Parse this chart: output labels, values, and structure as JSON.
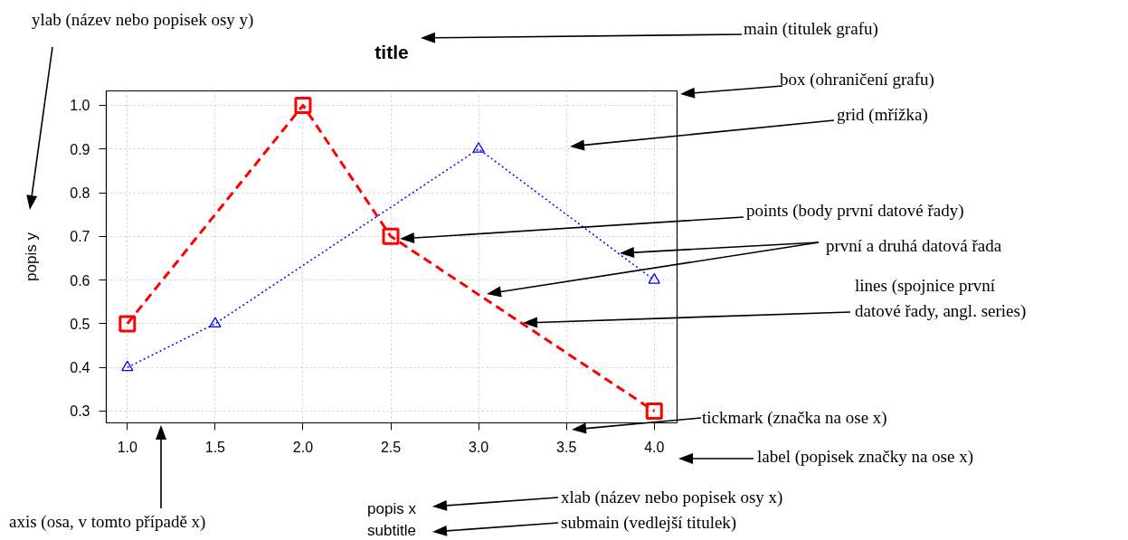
{
  "chart_data": {
    "type": "line",
    "title": "title",
    "subtitle": "subtitle",
    "xlabel": "popis x",
    "ylabel": "popis y",
    "xlim": [
      0.88,
      4.13
    ],
    "ylim": [
      0.273,
      1.033
    ],
    "xticks": [
      {
        "value": 1.0,
        "label": "1.0"
      },
      {
        "value": 1.5,
        "label": "1.5"
      },
      {
        "value": 2.0,
        "label": "2.0"
      },
      {
        "value": 2.5,
        "label": "2.5"
      },
      {
        "value": 3.0,
        "label": "3.0"
      },
      {
        "value": 3.5,
        "label": "3.5"
      },
      {
        "value": 4.0,
        "label": "4.0"
      }
    ],
    "yticks": [
      {
        "value": 0.3,
        "label": "0.3"
      },
      {
        "value": 0.4,
        "label": "0.4"
      },
      {
        "value": 0.5,
        "label": "0.5"
      },
      {
        "value": 0.6,
        "label": "0.6"
      },
      {
        "value": 0.7,
        "label": "0.7"
      },
      {
        "value": 0.8,
        "label": "0.8"
      },
      {
        "value": 0.9,
        "label": "0.9"
      },
      {
        "value": 1.0,
        "label": "1.0"
      }
    ],
    "grid": true,
    "series": [
      {
        "color": "#ff0000",
        "x": [
          1.0,
          2.0,
          2.5,
          4.0
        ],
        "values": [
          0.5,
          1.0,
          0.7,
          0.3
        ],
        "marker": "square",
        "line_style": "dashed"
      },
      {
        "color": "#0000ff",
        "x": [
          1.0,
          1.5,
          3.0,
          4.0
        ],
        "values": [
          0.4,
          0.5,
          0.9,
          0.6
        ],
        "marker": "triangle",
        "line_style": "dotted"
      }
    ],
    "annotations": [
      "ylab (název nebo popisek osy y)",
      "main (titulek grafu)",
      "box (ohraničení grafu)",
      "grid (mřížka)",
      "points (body první datové řady)",
      "první a druhá datová řada",
      "lines (spojnice první\ndatové řady, angl. series)",
      "tickmark (značka na ose x)",
      "label (popisek značky na ose x)",
      "axis (osa, v tomto případě x)",
      "xlab (název nebo popisek osy x)",
      "submain (vedlejší titulek)"
    ]
  }
}
